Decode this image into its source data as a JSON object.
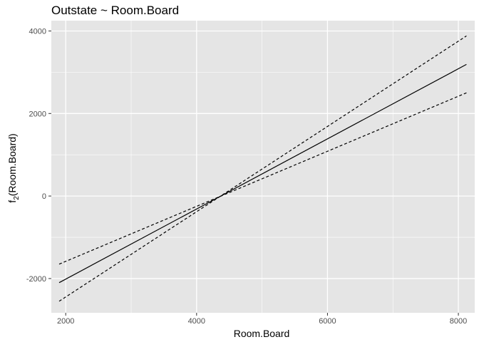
{
  "chart_data": {
    "type": "line",
    "title": "Outstate ~ Room.Board",
    "xlabel": "Room.Board",
    "ylabel_main": "f",
    "ylabel_sub": "2",
    "ylabel_rest": "(Room.Board)",
    "xlim": [
      1780,
      8250
    ],
    "ylim": [
      -2830,
      4250
    ],
    "x_ticks": [
      2000,
      4000,
      6000,
      8000
    ],
    "x_tick_labels": [
      "2000",
      "4000",
      "6000",
      "8000"
    ],
    "y_ticks": [
      -2000,
      0,
      2000,
      4000
    ],
    "y_tick_labels": [
      "-2000",
      "0",
      "2000",
      "4000"
    ],
    "grid": true,
    "panel_color": "#e5e5e5",
    "grid_color": "#ffffff",
    "series": [
      {
        "role": "fit",
        "line_style": "solid",
        "x": [
          1900,
          8124
        ],
        "y": [
          -2100,
          3190
        ]
      },
      {
        "role": "upper",
        "line_style": "dashed",
        "x": [
          1900,
          8124
        ],
        "y": [
          -1650,
          2500
        ]
      },
      {
        "role": "lower",
        "line_style": "dashed",
        "x": [
          1900,
          8124
        ],
        "y": [
          -2550,
          3880
        ]
      }
    ]
  }
}
